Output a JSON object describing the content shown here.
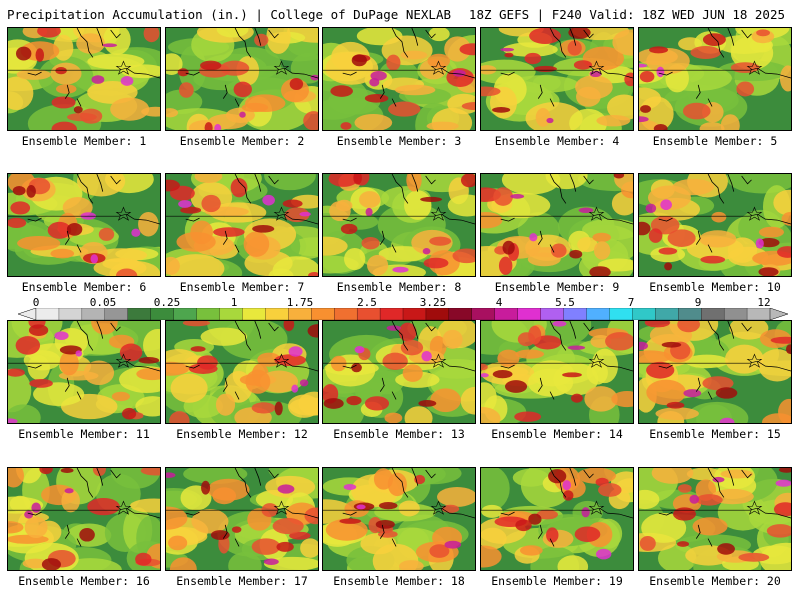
{
  "header": {
    "left": "Precipitation Accumulation (in.) | College of DuPage NEXLAB",
    "right": "18Z GEFS | F240 Valid: 18Z WED JUN 18 2025"
  },
  "colorbar": {
    "labels": [
      "0",
      "0.05",
      "0.25",
      "1",
      "1.75",
      "2.5",
      "3.25",
      "4",
      "5.5",
      "7",
      "9",
      "12"
    ],
    "colors": [
      "#ececec",
      "#d4d4d4",
      "#b4b4b4",
      "#969696",
      "#3c7a3c",
      "#3c8c3c",
      "#4ea64e",
      "#78c03c",
      "#a8d83c",
      "#e8e83c",
      "#f8d03c",
      "#f8b03c",
      "#f89030",
      "#f07030",
      "#e85030",
      "#e02828",
      "#c81818",
      "#a00c0c",
      "#880828",
      "#a81060",
      "#c81c9c",
      "#e030d0",
      "#b060f0",
      "#8080ff",
      "#50b0ff",
      "#30e0f0",
      "#30c8c8",
      "#40a8a8",
      "#508c8c",
      "#707070",
      "#909090",
      "#b8b8b8"
    ]
  },
  "panels": [
    {
      "caption": "Ensemble Member: 1"
    },
    {
      "caption": "Ensemble Member: 2"
    },
    {
      "caption": "Ensemble Member: 3"
    },
    {
      "caption": "Ensemble Member: 4"
    },
    {
      "caption": "Ensemble Member: 5"
    },
    {
      "caption": "Ensemble Member: 6"
    },
    {
      "caption": "Ensemble Member: 7"
    },
    {
      "caption": "Ensemble Member: 8"
    },
    {
      "caption": "Ensemble Member: 9"
    },
    {
      "caption": "Ensemble Member: 10"
    },
    {
      "caption": "Ensemble Member: 11"
    },
    {
      "caption": "Ensemble Member: 12"
    },
    {
      "caption": "Ensemble Member: 13"
    },
    {
      "caption": "Ensemble Member: 14"
    },
    {
      "caption": "Ensemble Member: 15"
    },
    {
      "caption": "Ensemble Member: 16"
    },
    {
      "caption": "Ensemble Member: 17"
    },
    {
      "caption": "Ensemble Member: 18"
    },
    {
      "caption": "Ensemble Member: 19"
    },
    {
      "caption": "Ensemble Member: 20"
    }
  ]
}
